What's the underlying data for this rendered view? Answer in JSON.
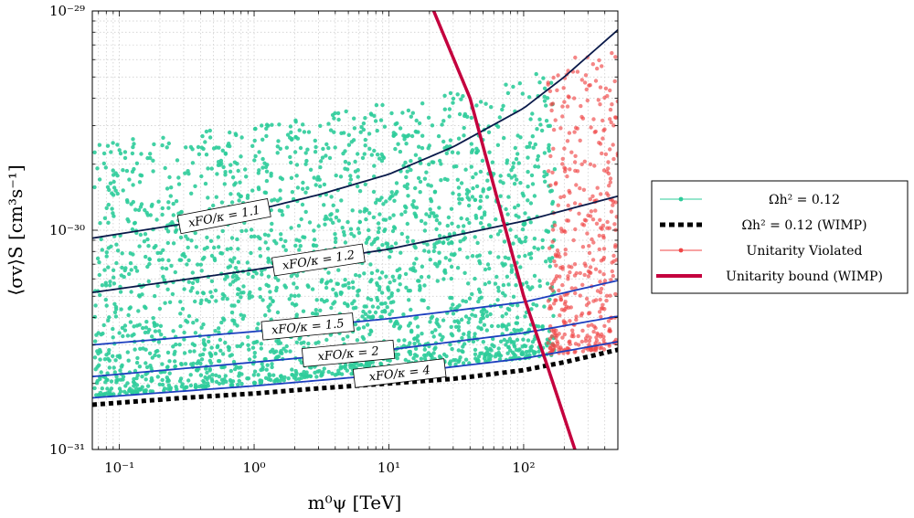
{
  "chart_data": {
    "type": "scatter",
    "x_scale": "log",
    "y_scale": "log",
    "xlim": [
      0.063,
      500
    ],
    "ylim": [
      1e-31,
      1e-29
    ],
    "xlabel": "m⁰ψ [TeV]",
    "ylabel": "⟨σv⟩S [cm³s⁻¹]",
    "x_ticks": [
      {
        "value": 0.1,
        "label": "10⁻¹"
      },
      {
        "value": 1,
        "label": "10⁰"
      },
      {
        "value": 10,
        "label": "10¹"
      },
      {
        "value": 100,
        "label": "10²"
      }
    ],
    "y_ticks": [
      {
        "value": 1e-31,
        "label": "10⁻³¹"
      },
      {
        "value": 1e-30,
        "label": "10⁻³⁰"
      },
      {
        "value": 1e-29,
        "label": "10⁻²⁹"
      }
    ],
    "grid": true,
    "legend_position": "outside right",
    "colors": {
      "relic": "#2ecc9a",
      "violated": "#f04545",
      "wimp_bound": "#c4003e",
      "contour": "#0a1a4a",
      "contour_blue": "#1d3fbf",
      "wimp_relic": "#000000"
    },
    "series": [
      {
        "name": "Ωh² = 0.12",
        "kind": "scatter",
        "x_range": [
          0.065,
          170
        ],
        "y_bottom": [
          [
            0.065,
            1.75e-31
          ],
          [
            1,
            2e-31
          ],
          [
            10,
            2.3e-31
          ],
          [
            100,
            2.6e-31
          ],
          [
            170,
            2.7e-31
          ]
        ],
        "y_top": [
          [
            0.065,
            2.5e-30
          ],
          [
            1,
            3e-30
          ],
          [
            10,
            3.8e-30
          ],
          [
            100,
            5e-30
          ],
          [
            170,
            5.5e-30
          ]
        ]
      },
      {
        "name": "Ωh² = 0.12 (WIMP)",
        "kind": "line",
        "points": [
          [
            0.063,
            1.6e-31
          ],
          [
            0.3,
            1.72e-31
          ],
          [
            1,
            1.8e-31
          ],
          [
            3,
            1.9e-31
          ],
          [
            10,
            2e-31
          ],
          [
            30,
            2.1e-31
          ],
          [
            100,
            2.3e-31
          ],
          [
            200,
            2.5e-31
          ],
          [
            500,
            2.85e-31
          ]
        ]
      },
      {
        "name": "Unitarity Violated",
        "kind": "scatter",
        "x_range": [
          150,
          500
        ],
        "y_bottom": [
          [
            150,
            2.7e-31
          ],
          [
            500,
            2.9e-31
          ]
        ],
        "y_top": [
          [
            150,
            5.7e-30
          ],
          [
            500,
            7e-30
          ]
        ]
      },
      {
        "name": "Unitarity bound (WIMP)",
        "kind": "line",
        "points": [
          [
            21.5,
            1e-29
          ],
          [
            40,
            4e-30
          ],
          [
            100,
            5e-31
          ],
          [
            150,
            2.4e-31
          ],
          [
            240,
            1e-31
          ]
        ]
      }
    ],
    "contours": [
      {
        "label": "xFO/κ = 1.1",
        "points": [
          [
            0.063,
            9.2e-31
          ],
          [
            0.3,
            1.07e-30
          ],
          [
            1,
            1.23e-30
          ],
          [
            3,
            1.45e-30
          ],
          [
            10,
            1.8e-30
          ],
          [
            30,
            2.4e-30
          ],
          [
            100,
            3.6e-30
          ],
          [
            200,
            5e-30
          ],
          [
            500,
            8.2e-30
          ]
        ]
      },
      {
        "label": "xFO/κ = 1.2",
        "points": [
          [
            0.063,
            5.2e-31
          ],
          [
            1,
            6.6e-31
          ],
          [
            10,
            8.2e-31
          ],
          [
            100,
            1.1e-30
          ],
          [
            500,
            1.43e-30
          ]
        ]
      },
      {
        "label": "xFO/κ = 1.5",
        "points": [
          [
            0.063,
            3e-31
          ],
          [
            1,
            3.45e-31
          ],
          [
            10,
            3.95e-31
          ],
          [
            100,
            4.7e-31
          ],
          [
            500,
            5.9e-31
          ]
        ]
      },
      {
        "label": "xFO/κ = 2",
        "points": [
          [
            0.063,
            2.15e-31
          ],
          [
            1,
            2.5e-31
          ],
          [
            10,
            2.85e-31
          ],
          [
            100,
            3.4e-31
          ],
          [
            500,
            4.05e-31
          ]
        ]
      },
      {
        "label": "xFO/κ = 4",
        "points": [
          [
            0.063,
            1.72e-31
          ],
          [
            1,
            1.95e-31
          ],
          [
            10,
            2.2e-31
          ],
          [
            100,
            2.6e-31
          ],
          [
            500,
            3.1e-31
          ]
        ]
      }
    ]
  }
}
